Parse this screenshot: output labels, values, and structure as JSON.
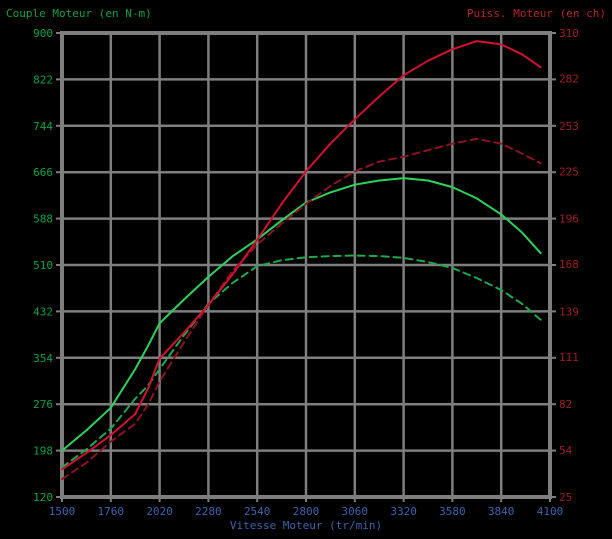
{
  "chart_data": {
    "type": "line",
    "title_left": "Couple Moteur (en N-m)",
    "title_right": "Puiss. Moteur (en ch)",
    "xlabel": "Vitesse Moteur (tr/min)",
    "xlim": [
      1500,
      4100
    ],
    "left_ylim": [
      120,
      900
    ],
    "right_ylim": [
      25,
      310
    ],
    "x_ticks": [
      1500,
      1760,
      2020,
      2280,
      2540,
      2800,
      3060,
      3320,
      3580,
      3840,
      4100
    ],
    "left_ticks": [
      900,
      822,
      744,
      666,
      588,
      510,
      432,
      354,
      276,
      198,
      120
    ],
    "right_ticks": [
      310,
      282,
      253,
      225,
      196,
      168,
      139,
      111,
      82,
      54,
      25
    ],
    "grid": true,
    "legend": "none",
    "colors": {
      "background": "#000000",
      "grid": "#7e7e7e",
      "frame": "#7e7e7e",
      "left_axis_text": "#00a445",
      "right_axis_title": "#b92025",
      "right_axis_ticks": "#a01c20",
      "x_axis_text": "#3c64ae",
      "torque_solid": "#2bd35a",
      "torque_dashed": "#1ea94a",
      "power_solid": "#d2112e",
      "power_dashed": "#8e1322"
    },
    "series": [
      {
        "name": "couple-dashed",
        "axis": "left",
        "style": "dashed",
        "color_key": "torque_dashed",
        "x": [
          1500,
          1630,
          1760,
          1890,
          1960,
          2020,
          2150,
          2280,
          2410,
          2540,
          2670,
          2800,
          2930,
          3060,
          3190,
          3320,
          3450,
          3580,
          3710,
          3840,
          3950,
          4050
        ],
        "values": [
          170,
          200,
          235,
          285,
          308,
          335,
          392,
          445,
          480,
          508,
          518,
          523,
          525,
          526,
          525,
          522,
          515,
          505,
          488,
          468,
          445,
          418
        ]
      },
      {
        "name": "couple-solid",
        "axis": "left",
        "style": "solid",
        "color_key": "torque_solid",
        "x": [
          1500,
          1630,
          1760,
          1890,
          1960,
          2020,
          2150,
          2280,
          2410,
          2540,
          2670,
          2800,
          2930,
          3060,
          3190,
          3320,
          3450,
          3580,
          3710,
          3840,
          3950,
          4050
        ],
        "values": [
          198,
          232,
          270,
          335,
          375,
          412,
          452,
          490,
          525,
          553,
          585,
          615,
          632,
          645,
          652,
          656,
          652,
          641,
          622,
          595,
          565,
          530
        ]
      },
      {
        "name": "puissance-dashed",
        "axis": "right",
        "style": "dashed",
        "color_key": "power_dashed",
        "x": [
          1500,
          1630,
          1760,
          1890,
          1960,
          2020,
          2150,
          2280,
          2410,
          2540,
          2670,
          2800,
          2930,
          3060,
          3190,
          3320,
          3450,
          3580,
          3710,
          3840,
          3950,
          4050
        ],
        "values": [
          36,
          46,
          59,
          70,
          82,
          96,
          120,
          143,
          164,
          180,
          193,
          205,
          216,
          225,
          231,
          234,
          238,
          242,
          245,
          242,
          236,
          230
        ]
      },
      {
        "name": "puissance-solid",
        "axis": "right",
        "style": "solid",
        "color_key": "power_solid",
        "x": [
          1500,
          1630,
          1760,
          1890,
          1960,
          2020,
          2150,
          2280,
          2410,
          2540,
          2670,
          2800,
          2930,
          3060,
          3190,
          3320,
          3450,
          3580,
          3710,
          3840,
          3950,
          4050
        ],
        "values": [
          42,
          52,
          63,
          76,
          92,
          110,
          126,
          143,
          162,
          183,
          205,
          225,
          242,
          257,
          271,
          284,
          293,
          300,
          305,
          303,
          297,
          289
        ]
      }
    ]
  }
}
